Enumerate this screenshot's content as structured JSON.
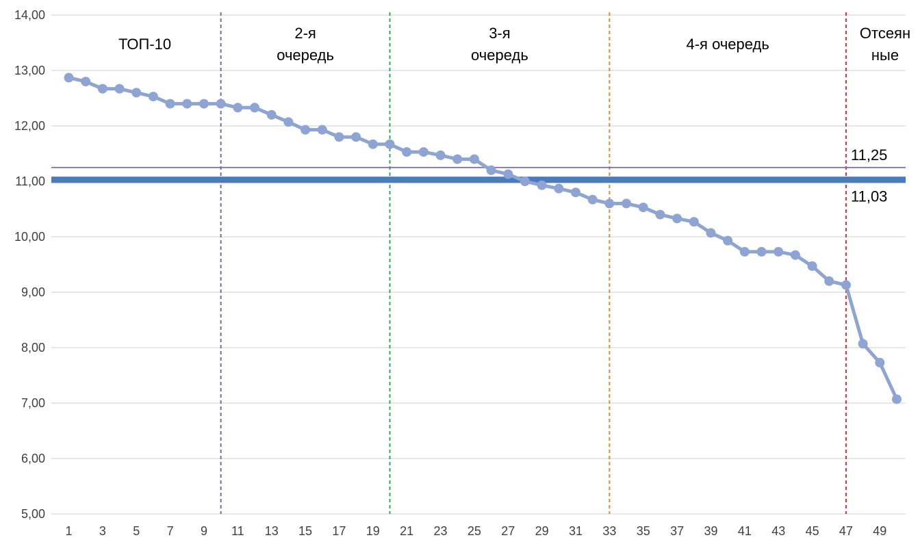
{
  "chart_data": {
    "type": "line",
    "x": [
      1,
      2,
      3,
      4,
      5,
      6,
      7,
      8,
      9,
      10,
      11,
      12,
      13,
      14,
      15,
      16,
      17,
      18,
      19,
      20,
      21,
      22,
      23,
      24,
      25,
      26,
      27,
      28,
      29,
      30,
      31,
      32,
      33,
      34,
      35,
      36,
      37,
      38,
      39,
      40,
      41,
      42,
      43,
      44,
      45,
      46,
      47,
      48,
      49,
      50
    ],
    "series": [
      {
        "values": [
          12.87,
          12.8,
          12.67,
          12.67,
          12.6,
          12.53,
          12.4,
          12.4,
          12.4,
          12.4,
          12.33,
          12.33,
          12.2,
          12.07,
          11.93,
          11.93,
          11.8,
          11.8,
          11.67,
          11.67,
          11.53,
          11.53,
          11.47,
          11.4,
          11.4,
          11.2,
          11.13,
          11.0,
          10.93,
          10.87,
          10.8,
          10.67,
          10.6,
          10.6,
          10.53,
          10.4,
          10.33,
          10.27,
          10.07,
          9.93,
          9.73,
          9.73,
          9.73,
          9.67,
          9.47,
          9.2,
          9.13,
          8.07,
          7.73,
          7.07
        ],
        "color": "#8EA5D3"
      }
    ],
    "xlim": [
      1,
      50
    ],
    "ylim": [
      5,
      14
    ],
    "y_ticks": [
      "5,00",
      "6,00",
      "7,00",
      "8,00",
      "9,00",
      "10,00",
      "11,00",
      "12,00",
      "13,00",
      "14,00"
    ],
    "x_ticks": [
      "1",
      "3",
      "5",
      "7",
      "9",
      "11",
      "13",
      "15",
      "17",
      "19",
      "21",
      "23",
      "25",
      "27",
      "29",
      "31",
      "33",
      "35",
      "37",
      "39",
      "41",
      "43",
      "45",
      "47",
      "49"
    ],
    "grid": "horizontal",
    "reference_lines": [
      {
        "value": 11.25,
        "label": "11,25",
        "color": "#7B67A8"
      },
      {
        "value": 11.03,
        "label": "11,03",
        "color": "#4A7CBD"
      }
    ],
    "zone_dividers": [
      {
        "x": 10,
        "color": "#7B67A8"
      },
      {
        "x": 20,
        "color": "#2EAE5C"
      },
      {
        "x": 33,
        "color": "#E88A2E"
      },
      {
        "x": 47,
        "color": "#E0303A"
      }
    ],
    "zones": [
      {
        "lines": [
          "ТОП-10"
        ],
        "x_start": 1,
        "x_end": 10
      },
      {
        "lines": [
          "2-я",
          "очередь"
        ],
        "x_start": 10,
        "x_end": 20
      },
      {
        "lines": [
          "3-я",
          "очередь"
        ],
        "x_start": 20,
        "x_end": 33
      },
      {
        "lines": [
          "4-я очередь"
        ],
        "x_start": 33,
        "x_end": 47
      },
      {
        "lines": [
          "Отсеян",
          "ные"
        ],
        "x_start": 47,
        "x_end": 50
      }
    ]
  }
}
